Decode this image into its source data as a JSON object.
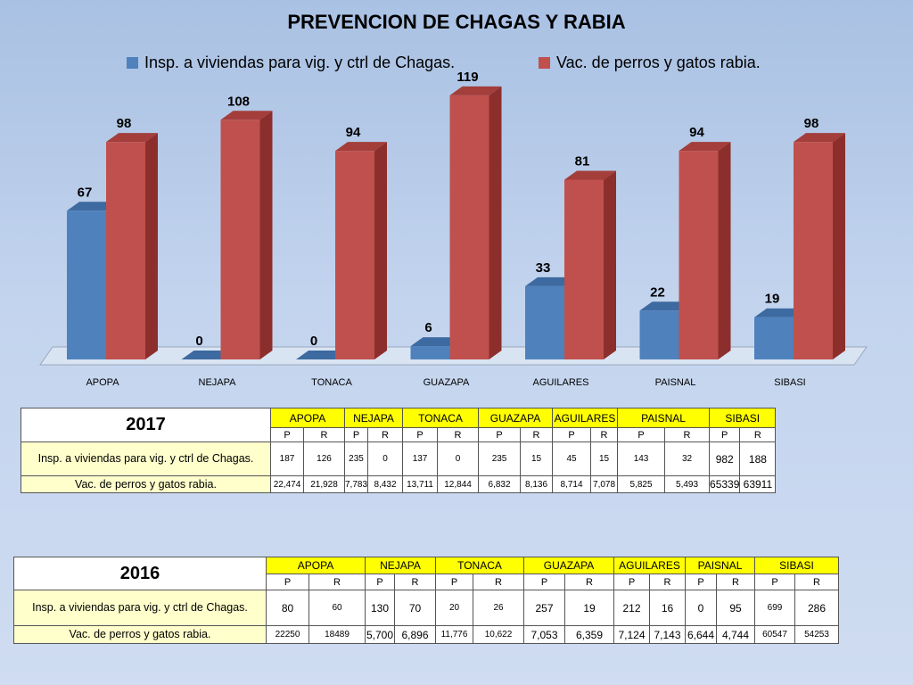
{
  "chart_data": {
    "type": "bar",
    "title": "PREVENCION DE CHAGAS Y RABIA",
    "categories": [
      "APOPA",
      "NEJAPA",
      "TONACA",
      "GUAZAPA",
      "AGUILARES",
      "PAISNAL",
      "SIBASI"
    ],
    "series": [
      {
        "name": "Insp. a viviendas para vig. y ctrl de Chagas.",
        "values": [
          67,
          0,
          0,
          6,
          33,
          22,
          19
        ],
        "color": "#4f81bd"
      },
      {
        "name": "Vac. de perros y gatos  rabia.",
        "values": [
          98,
          108,
          94,
          119,
          81,
          94,
          98
        ],
        "color": "#c0504d"
      }
    ],
    "ylim": [
      0,
      125
    ],
    "grid": false,
    "legend_position": "top",
    "data_labels": true,
    "style": "3d-bar"
  },
  "tables": [
    {
      "year": "2017",
      "regions": [
        "APOPA",
        "NEJAPA",
        "TONACA",
        "GUAZAPA",
        "AGUILARES",
        "PAISNAL",
        "SIBASI"
      ],
      "pr": [
        "P",
        "R"
      ],
      "rows": [
        {
          "label": "Insp. a viviendas para vig. y ctrl de Chagas.",
          "values": [
            "187",
            "126",
            "235",
            "0",
            "137",
            "0",
            "235",
            "15",
            "45",
            "15",
            "143",
            "32",
            "982",
            "188"
          ]
        },
        {
          "label": "Vac. de perros y gatos  rabia.",
          "values": [
            "22,474",
            "21,928",
            "7,783",
            "8,432",
            "13,711",
            "12,844",
            "6,832",
            "8,136",
            "8,714",
            "7,078",
            "5,825",
            "5,493",
            "65339",
            "63911"
          ]
        }
      ]
    },
    {
      "year": "2016",
      "regions": [
        "APOPA",
        "NEJAPA",
        "TONACA",
        "GUAZAPA",
        "AGUILARES",
        "PAISNAL",
        "SIBASI"
      ],
      "pr": [
        "P",
        "R"
      ],
      "rows": [
        {
          "label": "Insp. a viviendas para vig. y ctrl de Chagas.",
          "values": [
            "80",
            "60",
            "130",
            "70",
            "20",
            "26",
            "257",
            "19",
            "212",
            "16",
            "0",
            "95",
            "699",
            "286"
          ]
        },
        {
          "label": "Vac. de perros y gatos  rabia.",
          "values": [
            "22250",
            "18489",
            "5,700",
            "6,896",
            "11,776",
            "10,622",
            "7,053",
            "6,359",
            "7,124",
            "7,143",
            "6,644",
            "4,744",
            "60547",
            "54253"
          ]
        }
      ]
    }
  ]
}
